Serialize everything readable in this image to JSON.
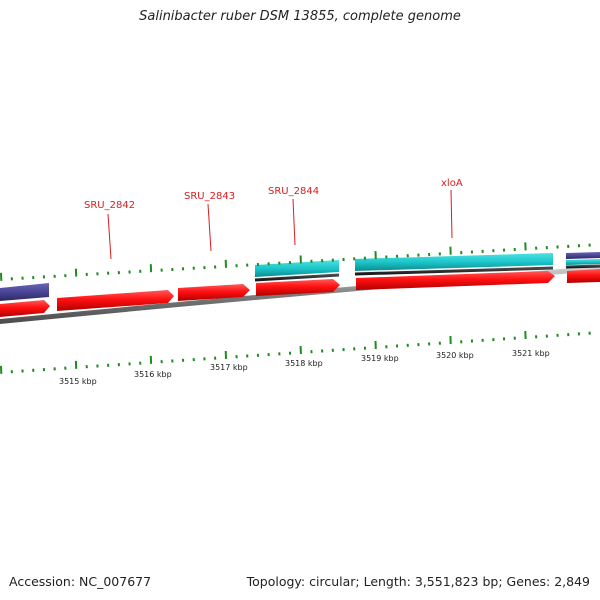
{
  "title": "Salinibacter ruber DSM 13855, complete genome",
  "accession": "Accession: NC_007677",
  "topology": "Topology: circular; Length: 3,551,823 bp; Genes: 2,849",
  "gene_labels": [
    "SRU_2842",
    "SRU_2843",
    "SRU_2844",
    "xloA"
  ],
  "kbp_labels": [
    "3515 kbp",
    "3516 kbp",
    "3517 kbp",
    "3518 kbp",
    "3519 kbp",
    "3520 kbp",
    "3521 kbp"
  ],
  "colors": {
    "backbone": "#8a8a8a",
    "cds": "#ff1a1a",
    "cds_dark": "#b80000",
    "cyan": "#20c8cc",
    "cyan_dark": "#0f8f93",
    "purple": "#4a4596",
    "purple_dark": "#2e2a66",
    "tick": "#1e8c1e",
    "label_red": "#d81e1e"
  }
}
